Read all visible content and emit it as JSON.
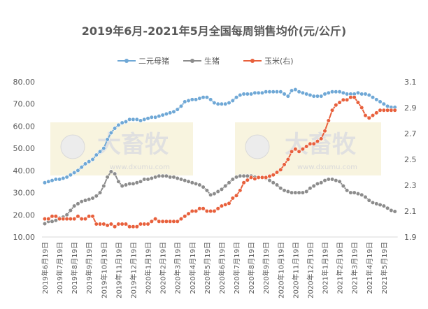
{
  "chart_data": {
    "type": "line",
    "title": "2019年6月-2021年5月全国每周销售均价(元/公斤)",
    "watermark": {
      "text": "大畜牧",
      "url": "www.dxumu.com"
    },
    "categories": [
      "2019年6月19日",
      null,
      null,
      null,
      "2019年7月19日",
      null,
      null,
      null,
      "2019年8月19日",
      null,
      null,
      null,
      "2019年9月19日",
      null,
      null,
      null,
      "2019年10月19日",
      null,
      null,
      null,
      "2019年11月19日",
      null,
      null,
      null,
      "2019年12月19日",
      null,
      null,
      null,
      "2020年1月19日",
      null,
      null,
      null,
      "2020年2月19日",
      null,
      null,
      null,
      "2020年3月19日",
      null,
      null,
      null,
      "2020年4月19日",
      null,
      null,
      null,
      "2020年5月19日",
      null,
      null,
      null,
      "2020年6月19日",
      null,
      null,
      null,
      "2020年7月19日",
      null,
      null,
      null,
      "2020年8月19日",
      null,
      null,
      null,
      "2020年9月19日",
      null,
      null,
      null,
      "2020年10月19日",
      null,
      null,
      null,
      "2020年11月19日",
      null,
      null,
      null,
      "2020年12月19日",
      null,
      null,
      null,
      "2021年1月19日",
      null,
      null,
      null,
      "2021年2月19日",
      null,
      null,
      null,
      "2021年3月19日",
      null,
      null,
      null,
      "2021年4月19日",
      null,
      null,
      null,
      "2021年5月19日",
      null,
      null,
      null
    ],
    "series": [
      {
        "name": "二元母猪",
        "color": "#6fa8d6",
        "values": [
          34.5,
          35,
          35.5,
          36,
          36,
          36.5,
          37,
          38,
          39,
          40,
          41.5,
          43,
          44,
          45,
          47,
          48.5,
          50,
          54,
          57,
          59,
          60.5,
          61.5,
          62,
          63,
          63,
          63,
          62.5,
          63,
          63.5,
          64,
          64,
          64.5,
          65,
          65.5,
          66,
          66.5,
          67.5,
          69,
          71,
          71.5,
          72,
          72,
          72.5,
          73,
          73,
          72,
          70.5,
          70,
          70,
          70,
          70.5,
          71.5,
          73,
          74,
          74.5,
          74.5,
          74.5,
          75,
          75,
          75,
          75.5,
          75.5,
          75.5,
          75.5,
          75.5,
          74.5,
          73.5,
          76,
          76.5,
          75.5,
          75,
          74.5,
          74,
          73.5,
          73.5,
          73.5,
          74.5,
          75,
          75.5,
          75.5,
          75.5,
          75,
          74.5,
          74.5,
          74.5,
          75,
          74.5,
          74.5,
          74,
          73,
          72,
          71,
          70,
          69,
          68.5,
          68.5
        ]
      },
      {
        "name": "生猪",
        "color": "#8c8c8c",
        "values": [
          16,
          17,
          17,
          17.5,
          18.5,
          19,
          20,
          22,
          24,
          25,
          26,
          26.5,
          27,
          27.5,
          28.5,
          30,
          33,
          37,
          39.5,
          38.5,
          35,
          33,
          33.5,
          34,
          34,
          34.5,
          35,
          36,
          36,
          36.5,
          37,
          37.5,
          37.5,
          37.5,
          37,
          37,
          36.5,
          36,
          35.5,
          35,
          34.5,
          34,
          33.5,
          32.5,
          31,
          29,
          29.5,
          30.5,
          31.5,
          33,
          34.5,
          36,
          37,
          37.5,
          37.5,
          37.5,
          37.5,
          37,
          37,
          37,
          36.5,
          35.5,
          34.5,
          33.5,
          32,
          31,
          30.5,
          30,
          30,
          30,
          30,
          30.5,
          32,
          33,
          34,
          34.5,
          35.5,
          36,
          36,
          35.5,
          35,
          33,
          31,
          30,
          30,
          29.5,
          29,
          28,
          26.5,
          25.5,
          25,
          24.5,
          24,
          23,
          22,
          21.5
        ]
      },
      {
        "name": "玉米(右)",
        "color": "#e8603c",
        "axis": "y2",
        "values": [
          2.04,
          2.04,
          2.06,
          2.06,
          2.04,
          2.04,
          2.04,
          2.04,
          2.04,
          2.06,
          2.04,
          2.04,
          2.06,
          2.06,
          2.0,
          2.0,
          2.0,
          1.99,
          2.0,
          1.98,
          2.0,
          2.0,
          2.0,
          1.98,
          1.98,
          1.98,
          2.0,
          2.0,
          2.0,
          2.02,
          2.04,
          2.02,
          2.02,
          2.02,
          2.02,
          2.02,
          2.02,
          2.04,
          2.06,
          2.08,
          2.1,
          2.1,
          2.12,
          2.12,
          2.1,
          2.1,
          2.1,
          2.12,
          2.14,
          2.15,
          2.16,
          2.2,
          2.22,
          2.26,
          2.32,
          2.34,
          2.36,
          2.35,
          2.36,
          2.36,
          2.36,
          2.37,
          2.38,
          2.4,
          2.42,
          2.46,
          2.5,
          2.56,
          2.58,
          2.56,
          2.58,
          2.6,
          2.62,
          2.62,
          2.64,
          2.66,
          2.72,
          2.8,
          2.88,
          2.92,
          2.94,
          2.96,
          2.96,
          2.98,
          2.98,
          2.94,
          2.9,
          2.84,
          2.82,
          2.84,
          2.86,
          2.88,
          2.88,
          2.88,
          2.88,
          2.88
        ]
      }
    ],
    "ylim": [
      10,
      80
    ],
    "yticks": [
      {
        "value": 10,
        "label": "10.00"
      },
      {
        "value": 20,
        "label": "20.00"
      },
      {
        "value": 30,
        "label": "30.00"
      },
      {
        "value": 40,
        "label": "40.00"
      },
      {
        "value": 50,
        "label": "50.00"
      },
      {
        "value": 60,
        "label": "60.00"
      },
      {
        "value": 70,
        "label": "70.00"
      },
      {
        "value": 80,
        "label": "80.00"
      }
    ],
    "y2lim": [
      1.9,
      3.1
    ],
    "y2ticks": [
      1.9,
      2.1,
      2.3,
      2.5,
      2.7,
      2.9,
      3.1
    ],
    "legend": "top"
  }
}
